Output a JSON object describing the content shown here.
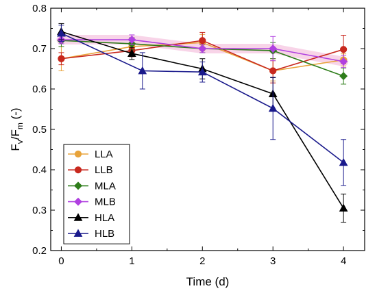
{
  "chart_data": {
    "type": "line",
    "xlabel": "Time (d)",
    "ylabel_main": "F",
    "ylabel_sub_v": "v",
    "ylabel_sep": "/F",
    "ylabel_sub_m": "m",
    "ylabel_tail": " (-)",
    "xlim": [
      -0.15,
      4.3
    ],
    "ylim": [
      0.2,
      0.8
    ],
    "xticks": [
      0,
      1,
      2,
      3,
      4
    ],
    "yticks": [
      0.2,
      0.3,
      0.4,
      0.5,
      0.6,
      0.7,
      0.8
    ],
    "xtick_labels": [
      "0",
      "1",
      "2",
      "3",
      "4"
    ],
    "ytick_labels": [
      "0.2",
      "0.3",
      "0.4",
      "0.5",
      "0.6",
      "0.7",
      "0.8"
    ],
    "grid": false,
    "legend_position": "bottom-left",
    "series": [
      {
        "name": "LLA",
        "color": "#E8A33A",
        "marker": "circle",
        "x": [
          0,
          1,
          2,
          3,
          4
        ],
        "y": [
          0.675,
          0.705,
          0.715,
          0.645,
          0.672
        ],
        "err": [
          0.03,
          0.02,
          0.02,
          0.025,
          0.015
        ]
      },
      {
        "name": "LLB",
        "color": "#C8281E",
        "marker": "circle",
        "x": [
          0,
          1,
          2,
          3,
          4
        ],
        "y": [
          0.675,
          0.695,
          0.72,
          0.645,
          0.698
        ],
        "err": [
          0.015,
          0.015,
          0.02,
          0.03,
          0.035
        ]
      },
      {
        "name": "MLA",
        "color": "#2E7D1A",
        "marker": "diamond",
        "x": [
          0,
          1,
          2,
          3,
          4
        ],
        "y": [
          0.72,
          0.712,
          0.7,
          0.695,
          0.632
        ],
        "err": [
          0.015,
          0.015,
          0.01,
          0.02,
          0.02
        ]
      },
      {
        "name": "MLB",
        "color": "#B040E0",
        "marker": "diamond",
        "x": [
          0,
          1,
          2,
          3,
          4
        ],
        "y": [
          0.722,
          0.722,
          0.7,
          0.7,
          0.668
        ],
        "err": [
          0.01,
          0.012,
          0.01,
          0.03,
          0.015
        ]
      },
      {
        "name": "HLA",
        "color": "#000000",
        "marker": "triangle",
        "x": [
          0,
          1,
          2,
          3,
          4
        ],
        "y": [
          0.742,
          0.688,
          0.65,
          0.588,
          0.305
        ],
        "err": [
          0.02,
          0.015,
          0.025,
          0.04,
          0.035
        ]
      },
      {
        "name": "HLB",
        "color": "#1A1A8C",
        "marker": "triangle",
        "x": [
          0,
          1.15,
          2,
          3,
          4
        ],
        "y": [
          0.738,
          0.645,
          0.642,
          0.552,
          0.418
        ],
        "err": [
          0.02,
          0.045,
          0.025,
          0.077,
          0.057
        ]
      }
    ]
  }
}
